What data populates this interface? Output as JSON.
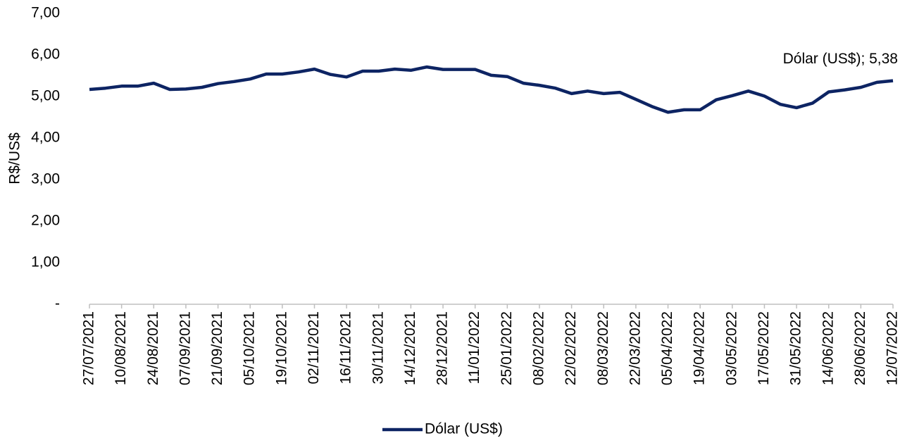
{
  "chart_data": {
    "type": "line",
    "y_label": "R$/US$",
    "annotation": "Dólar (US$); 5,38",
    "categories": [
      "27/07/2021",
      null,
      "10/08/2021",
      null,
      "24/08/2021",
      null,
      "07/09/2021",
      null,
      "21/09/2021",
      null,
      "05/10/2021",
      null,
      "19/10/2021",
      null,
      "02/11/2021",
      null,
      "16/11/2021",
      null,
      "30/11/2021",
      null,
      "14/12/2021",
      null,
      "28/12/2021",
      null,
      "11/01/2022",
      null,
      "25/01/2022",
      null,
      "08/02/2022",
      null,
      "22/02/2022",
      null,
      "08/03/2022",
      null,
      "22/03/2022",
      null,
      "05/04/2022",
      null,
      "19/04/2022",
      null,
      "03/05/2022",
      null,
      "17/05/2022",
      null,
      "31/05/2022",
      null,
      "14/06/2022",
      null,
      "28/06/2022",
      null,
      "12/07/2022"
    ],
    "series": [
      {
        "name": "Dólar (US$)",
        "color": "#0d2463",
        "values": [
          5.17,
          5.2,
          5.25,
          5.25,
          5.32,
          5.17,
          5.18,
          5.22,
          5.31,
          5.36,
          5.42,
          5.54,
          5.54,
          5.59,
          5.66,
          5.53,
          5.47,
          5.61,
          5.61,
          5.66,
          5.63,
          5.71,
          5.65,
          5.65,
          5.65,
          5.51,
          5.48,
          5.32,
          5.27,
          5.2,
          5.07,
          5.13,
          5.07,
          5.1,
          4.93,
          4.76,
          4.62,
          4.68,
          4.68,
          4.92,
          5.02,
          5.13,
          5.01,
          4.81,
          4.73,
          4.84,
          5.11,
          5.16,
          5.22,
          5.34,
          5.38
        ]
      }
    ],
    "ylim": [
      0,
      7
    ],
    "yticks": [
      {
        "value": 0,
        "label": "-"
      },
      {
        "value": 1,
        "label": "1,00"
      },
      {
        "value": 2,
        "label": "2,00"
      },
      {
        "value": 3,
        "label": "3,00"
      },
      {
        "value": 4,
        "label": "4,00"
      },
      {
        "value": 5,
        "label": "5,00"
      },
      {
        "value": 6,
        "label": "6,00"
      },
      {
        "value": 7,
        "label": "7,00"
      }
    ],
    "grid": false,
    "legend": "bottom"
  }
}
